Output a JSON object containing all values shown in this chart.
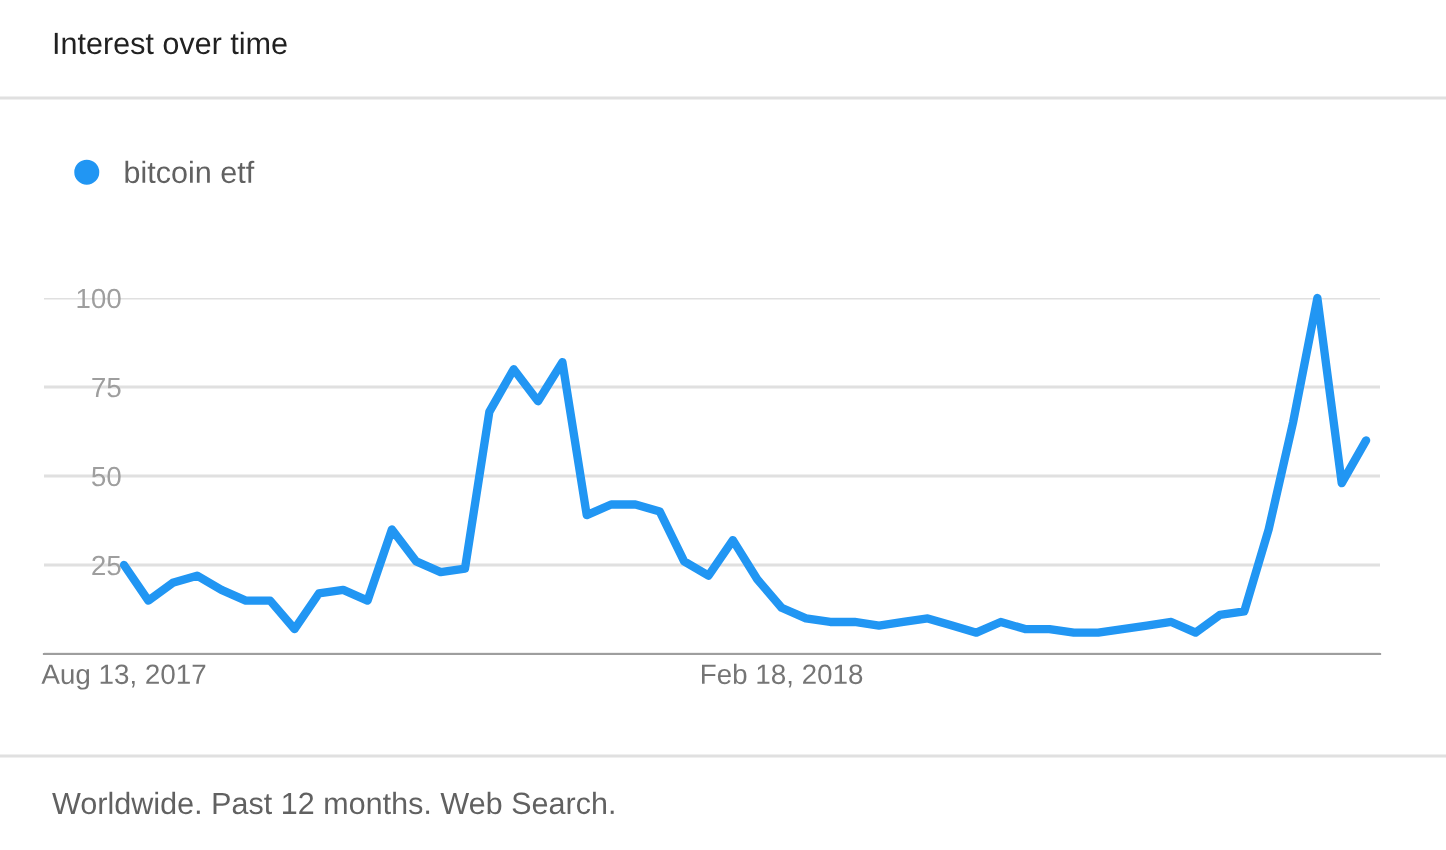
{
  "chart_data": {
    "type": "line",
    "title": "Interest over time",
    "annotations": [
      "Worldwide. Past 12 months. Web Search."
    ],
    "x": [
      "2017-08-13",
      "2017-08-20",
      "2017-08-27",
      "2017-09-03",
      "2017-09-10",
      "2017-09-17",
      "2017-09-24",
      "2017-10-01",
      "2017-10-08",
      "2017-10-15",
      "2017-10-22",
      "2017-10-29",
      "2017-11-05",
      "2017-11-12",
      "2017-11-19",
      "2017-11-26",
      "2017-12-03",
      "2017-12-10",
      "2017-12-17",
      "2017-12-24",
      "2017-12-31",
      "2018-01-07",
      "2018-01-14",
      "2018-01-21",
      "2018-01-28",
      "2018-02-04",
      "2018-02-11",
      "2018-02-18",
      "2018-02-25",
      "2018-03-04",
      "2018-03-11",
      "2018-03-18",
      "2018-03-25",
      "2018-04-01",
      "2018-04-08",
      "2018-04-15",
      "2018-04-22",
      "2018-04-29",
      "2018-05-06",
      "2018-05-13",
      "2018-05-20",
      "2018-05-27",
      "2018-06-03",
      "2018-06-10",
      "2018-06-17",
      "2018-06-24",
      "2018-07-01",
      "2018-07-08",
      "2018-07-15",
      "2018-07-22",
      "2018-07-29",
      "2018-08-05"
    ],
    "series": [
      {
        "name": "bitcoin etf",
        "color": "#2196f3",
        "values": [
          25,
          15,
          20,
          22,
          18,
          15,
          15,
          7,
          17,
          18,
          15,
          35,
          26,
          23,
          24,
          68,
          80,
          71,
          82,
          39,
          42,
          42,
          40,
          26,
          22,
          32,
          21,
          13,
          10,
          9,
          9,
          8,
          9,
          10,
          8,
          6,
          9,
          7,
          7,
          6,
          6,
          7,
          8,
          9,
          6,
          11,
          12,
          35,
          65,
          100,
          48,
          60
        ]
      }
    ],
    "xlim": [
      "2017-07-21",
      "2018-08-09"
    ],
    "xticks": [
      {
        "value": "2017-08-13",
        "label": "Aug 13, 2017"
      },
      {
        "value": "2018-02-18",
        "label": "Feb 18, 2018"
      }
    ],
    "ylim": [
      0,
      100
    ],
    "yticks": [
      {
        "value": 0,
        "label": null
      },
      25,
      50,
      75,
      100
    ],
    "grid": "y",
    "legend": "top left",
    "marker": "none",
    "line_style": "solid"
  }
}
